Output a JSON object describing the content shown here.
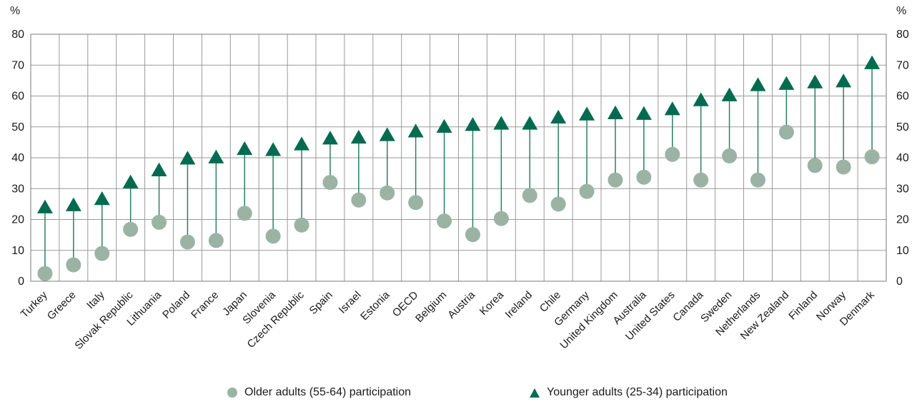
{
  "chart_data": {
    "type": "scatter",
    "y_unit_left": "%",
    "y_unit_right": "%",
    "ylim": [
      0,
      80
    ],
    "yticks": [
      0,
      10,
      20,
      30,
      40,
      50,
      60,
      70,
      80
    ],
    "grid": true,
    "legend_position": "bottom",
    "categories": [
      "Turkey",
      "Greece",
      "Italy",
      "Slovak Republic",
      "Lithuania",
      "Poland",
      "France",
      "Japan",
      "Slovenia",
      "Czech Republic",
      "Spain",
      "Israel",
      "Estonia",
      "OECD",
      "Belgium",
      "Austria",
      "Korea",
      "Ireland",
      "Chile",
      "Germany",
      "United Kingdom",
      "Australia",
      "United States",
      "Canada",
      "Sweden",
      "Netherlands",
      "New Zealand",
      "Finland",
      "Norway",
      "Denmark"
    ],
    "series": [
      {
        "name": "Older adults (55-64) participation",
        "marker": "circle",
        "color": "#9bb3a5",
        "values": [
          2.5,
          5.3,
          9.0,
          16.8,
          19.1,
          12.7,
          13.2,
          22.0,
          14.6,
          18.2,
          32.0,
          26.3,
          28.6,
          25.5,
          19.5,
          15.1,
          20.3,
          27.8,
          25.0,
          29.1,
          32.8,
          33.7,
          41.1,
          32.8,
          40.6,
          32.8,
          48.3,
          37.5,
          37.0,
          40.3
        ]
      },
      {
        "name": "Younger adults (25-34) participation",
        "marker": "triangle",
        "color": "#006b50",
        "values": [
          23.9,
          24.6,
          26.6,
          32.0,
          35.9,
          39.7,
          40.1,
          42.8,
          42.5,
          44.3,
          46.2,
          46.5,
          47.3,
          48.5,
          50.0,
          50.6,
          51.0,
          51.0,
          53.0,
          54.0,
          54.4,
          54.2,
          55.7,
          58.6,
          60.2,
          63.5,
          63.9,
          64.4,
          64.7,
          70.6
        ]
      }
    ]
  }
}
